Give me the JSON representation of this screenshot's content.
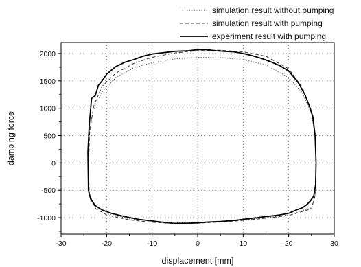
{
  "chart_data": {
    "type": "line",
    "title": "",
    "xlabel": "displacement [mm]",
    "ylabel": "damping force",
    "xlim": [
      -30,
      30
    ],
    "ylim": [
      -1300,
      2200
    ],
    "x_ticks": [
      -30,
      -20,
      -10,
      0,
      10,
      20,
      30
    ],
    "y_ticks": [
      -1000,
      -500,
      0,
      500,
      1000,
      1500,
      2000
    ],
    "grid": true,
    "legend_position": "top-right",
    "series": [
      {
        "name": "simulation result without pumping",
        "style": "dotted",
        "points": [
          [
            -24,
            -100
          ],
          [
            -23.8,
            500
          ],
          [
            -23,
            950
          ],
          [
            -21,
            1300
          ],
          [
            -18,
            1560
          ],
          [
            -14,
            1740
          ],
          [
            -10,
            1830
          ],
          [
            -5,
            1900
          ],
          [
            0,
            1930
          ],
          [
            5,
            1925
          ],
          [
            10,
            1890
          ],
          [
            15,
            1790
          ],
          [
            20,
            1560
          ],
          [
            23,
            1280
          ],
          [
            25,
            900
          ],
          [
            25.8,
            500
          ],
          [
            26,
            0
          ],
          [
            25.8,
            -600
          ],
          [
            25,
            -820
          ],
          [
            20,
            -950
          ],
          [
            15,
            -1000
          ],
          [
            10,
            -1040
          ],
          [
            5,
            -1070
          ],
          [
            0,
            -1090
          ],
          [
            -5,
            -1085
          ],
          [
            -10,
            -1060
          ],
          [
            -15,
            -1020
          ],
          [
            -20,
            -930
          ],
          [
            -22.5,
            -820
          ],
          [
            -23.8,
            -560
          ],
          [
            -24,
            -100
          ]
        ]
      },
      {
        "name": "simulation result with pumping",
        "style": "dashed",
        "points": [
          [
            -24,
            -100
          ],
          [
            -23.7,
            600
          ],
          [
            -22.8,
            1050
          ],
          [
            -21,
            1400
          ],
          [
            -18,
            1640
          ],
          [
            -14,
            1820
          ],
          [
            -10,
            1930
          ],
          [
            -5,
            2010
          ],
          [
            0,
            2050
          ],
          [
            5,
            2060
          ],
          [
            10,
            2030
          ],
          [
            15,
            1950
          ],
          [
            20,
            1720
          ],
          [
            23,
            1380
          ],
          [
            25,
            950
          ],
          [
            25.8,
            500
          ],
          [
            26,
            0
          ],
          [
            25.8,
            -600
          ],
          [
            25,
            -840
          ],
          [
            20,
            -960
          ],
          [
            15,
            -1010
          ],
          [
            10,
            -1050
          ],
          [
            5,
            -1080
          ],
          [
            0,
            -1100
          ],
          [
            -5,
            -1105
          ],
          [
            -10,
            -1085
          ],
          [
            -15,
            -1040
          ],
          [
            -20,
            -950
          ],
          [
            -22.5,
            -830
          ],
          [
            -23.8,
            -560
          ],
          [
            -24,
            -100
          ]
        ]
      },
      {
        "name": "experiment result with pumping",
        "style": "solid",
        "points": [
          [
            -24,
            -400
          ],
          [
            -24.1,
            200
          ],
          [
            -23.8,
            700
          ],
          [
            -23.3,
            1180
          ],
          [
            -22.5,
            1230
          ],
          [
            -21.8,
            1420
          ],
          [
            -21,
            1500
          ],
          [
            -20,
            1620
          ],
          [
            -18,
            1760
          ],
          [
            -16,
            1840
          ],
          [
            -14,
            1890
          ],
          [
            -12,
            1950
          ],
          [
            -10,
            1990
          ],
          [
            -8,
            2010
          ],
          [
            -5,
            2040
          ],
          [
            -2,
            2050
          ],
          [
            0,
            2070
          ],
          [
            2,
            2070
          ],
          [
            4,
            2050
          ],
          [
            6,
            2040
          ],
          [
            8,
            2030
          ],
          [
            10,
            2000
          ],
          [
            12,
            1960
          ],
          [
            14,
            1910
          ],
          [
            16,
            1850
          ],
          [
            18,
            1780
          ],
          [
            20,
            1680
          ],
          [
            22,
            1480
          ],
          [
            23.5,
            1260
          ],
          [
            24.5,
            1050
          ],
          [
            25.3,
            850
          ],
          [
            25.8,
            500
          ],
          [
            26,
            0
          ],
          [
            25.9,
            -400
          ],
          [
            25.5,
            -600
          ],
          [
            24.8,
            -690
          ],
          [
            24,
            -760
          ],
          [
            23,
            -820
          ],
          [
            22,
            -850
          ],
          [
            20,
            -920
          ],
          [
            18,
            -950
          ],
          [
            15,
            -980
          ],
          [
            12,
            -1010
          ],
          [
            10,
            -1030
          ],
          [
            8,
            -1050
          ],
          [
            5,
            -1070
          ],
          [
            2,
            -1080
          ],
          [
            0,
            -1095
          ],
          [
            -2,
            -1100
          ],
          [
            -5,
            -1105
          ],
          [
            -8,
            -1080
          ],
          [
            -10,
            -1060
          ],
          [
            -13,
            -1030
          ],
          [
            -16,
            -980
          ],
          [
            -19,
            -920
          ],
          [
            -21,
            -860
          ],
          [
            -22.5,
            -780
          ],
          [
            -23.5,
            -660
          ],
          [
            -24,
            -500
          ],
          [
            -24,
            -400
          ]
        ]
      }
    ]
  }
}
